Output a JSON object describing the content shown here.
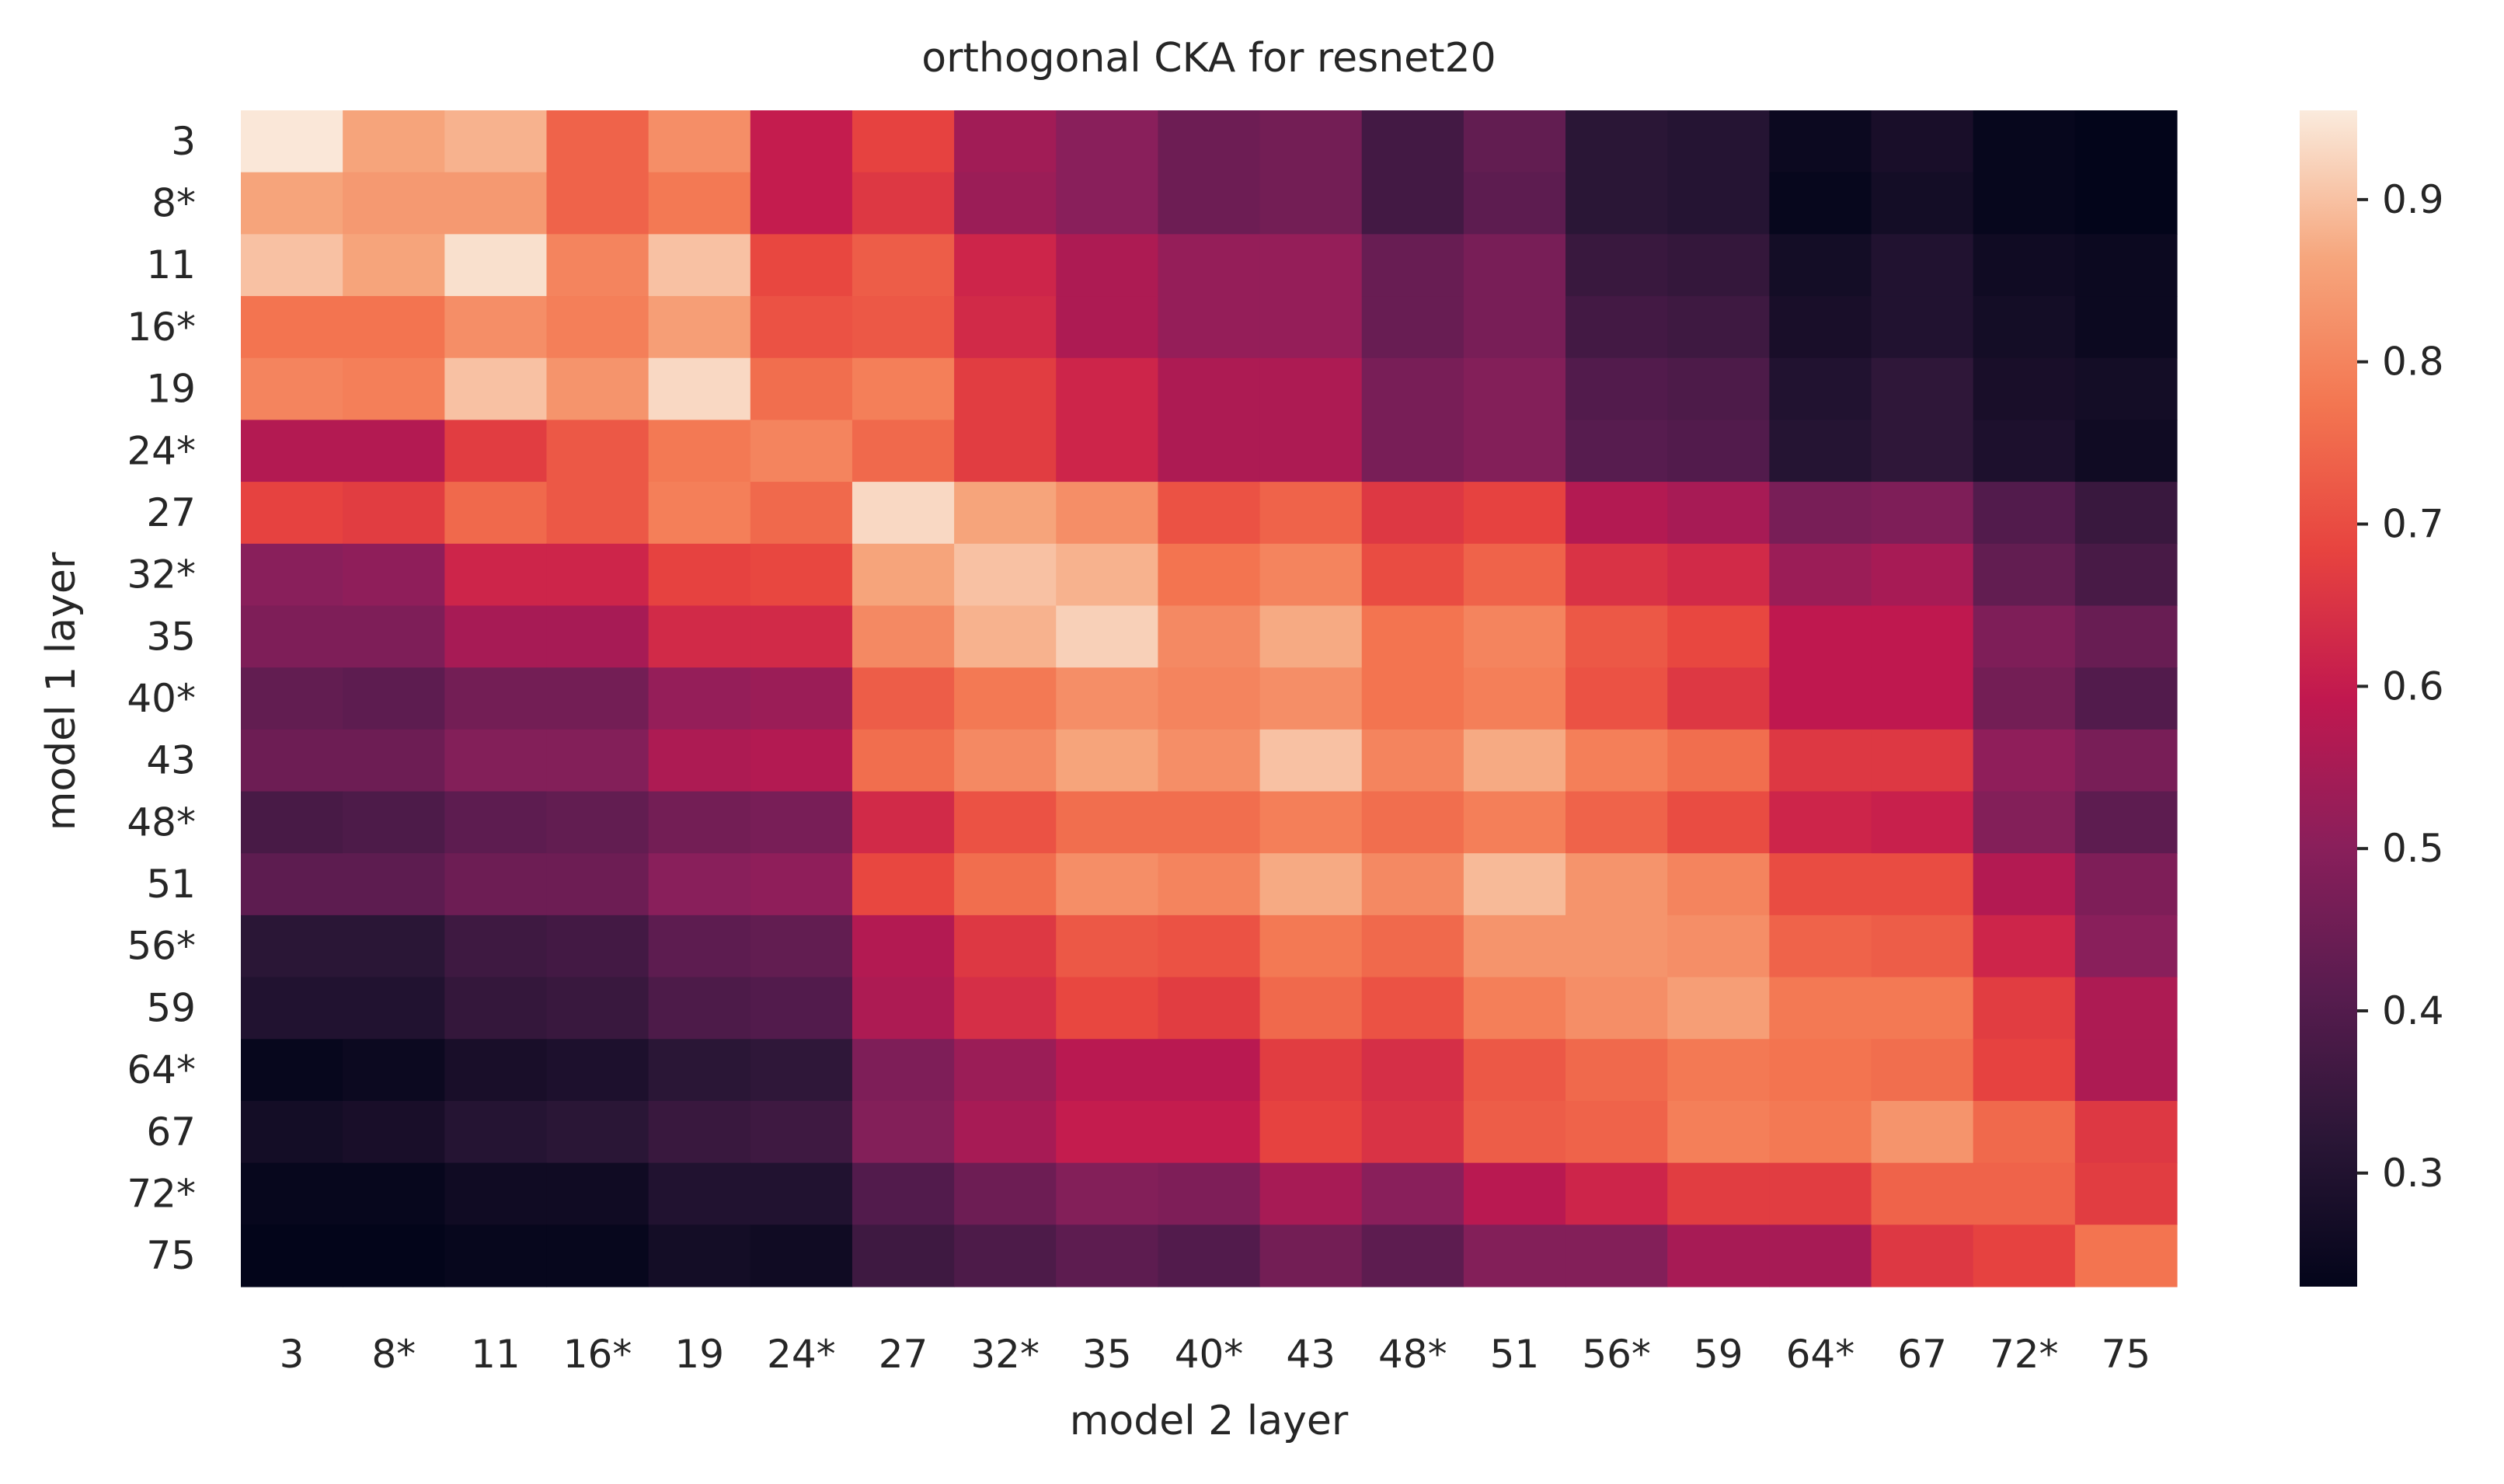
{
  "chart_data": {
    "type": "heatmap",
    "title": "orthogonal CKA for resnet20",
    "xlabel": "model 2 layer",
    "ylabel": "model 1 layer",
    "x_categories": [
      "3",
      "8*",
      "11",
      "16*",
      "19",
      "24*",
      "27",
      "32*",
      "35",
      "40*",
      "43",
      "48*",
      "51",
      "56*",
      "59",
      "64*",
      "67",
      "72*",
      "75"
    ],
    "y_categories": [
      "3",
      "8*",
      "11",
      "16*",
      "19",
      "24*",
      "27",
      "32*",
      "35",
      "40*",
      "43",
      "48*",
      "51",
      "56*",
      "59",
      "64*",
      "67",
      "72*",
      "75"
    ],
    "colorbar": {
      "min": 0.23,
      "max": 0.955,
      "ticks": [
        0.3,
        0.4,
        0.5,
        0.6,
        0.7,
        0.8,
        0.9
      ],
      "colormap": "rocket"
    },
    "values": [
      [
        0.95,
        0.86,
        0.88,
        0.74,
        0.82,
        0.6,
        0.68,
        0.54,
        0.5,
        0.45,
        0.46,
        0.37,
        0.43,
        0.32,
        0.31,
        0.25,
        0.28,
        0.24,
        0.23
      ],
      [
        0.86,
        0.84,
        0.84,
        0.74,
        0.78,
        0.6,
        0.66,
        0.53,
        0.5,
        0.45,
        0.46,
        0.37,
        0.42,
        0.32,
        0.31,
        0.24,
        0.27,
        0.24,
        0.23
      ],
      [
        0.9,
        0.86,
        0.94,
        0.8,
        0.9,
        0.69,
        0.73,
        0.62,
        0.56,
        0.52,
        0.52,
        0.44,
        0.47,
        0.35,
        0.34,
        0.27,
        0.3,
        0.26,
        0.25
      ],
      [
        0.77,
        0.77,
        0.82,
        0.79,
        0.85,
        0.71,
        0.72,
        0.63,
        0.56,
        0.52,
        0.52,
        0.44,
        0.47,
        0.37,
        0.36,
        0.28,
        0.3,
        0.27,
        0.25
      ],
      [
        0.8,
        0.79,
        0.9,
        0.83,
        0.93,
        0.76,
        0.79,
        0.67,
        0.62,
        0.56,
        0.56,
        0.47,
        0.49,
        0.4,
        0.39,
        0.3,
        0.33,
        0.28,
        0.27
      ],
      [
        0.57,
        0.57,
        0.67,
        0.72,
        0.78,
        0.8,
        0.75,
        0.67,
        0.62,
        0.56,
        0.56,
        0.47,
        0.49,
        0.41,
        0.4,
        0.31,
        0.33,
        0.29,
        0.26
      ],
      [
        0.68,
        0.67,
        0.75,
        0.72,
        0.79,
        0.75,
        0.93,
        0.86,
        0.82,
        0.71,
        0.74,
        0.66,
        0.68,
        0.57,
        0.55,
        0.47,
        0.48,
        0.4,
        0.35
      ],
      [
        0.5,
        0.51,
        0.62,
        0.62,
        0.68,
        0.69,
        0.86,
        0.9,
        0.88,
        0.77,
        0.8,
        0.7,
        0.74,
        0.65,
        0.63,
        0.53,
        0.55,
        0.43,
        0.38
      ],
      [
        0.48,
        0.48,
        0.55,
        0.55,
        0.63,
        0.63,
        0.81,
        0.88,
        0.92,
        0.81,
        0.87,
        0.77,
        0.8,
        0.72,
        0.69,
        0.59,
        0.59,
        0.48,
        0.44
      ],
      [
        0.43,
        0.42,
        0.46,
        0.46,
        0.52,
        0.53,
        0.73,
        0.78,
        0.82,
        0.8,
        0.82,
        0.77,
        0.79,
        0.71,
        0.66,
        0.59,
        0.59,
        0.46,
        0.4
      ],
      [
        0.45,
        0.45,
        0.49,
        0.49,
        0.56,
        0.57,
        0.76,
        0.81,
        0.86,
        0.82,
        0.9,
        0.8,
        0.87,
        0.79,
        0.76,
        0.66,
        0.66,
        0.51,
        0.47
      ],
      [
        0.38,
        0.39,
        0.42,
        0.43,
        0.46,
        0.47,
        0.63,
        0.71,
        0.76,
        0.76,
        0.79,
        0.76,
        0.79,
        0.74,
        0.7,
        0.62,
        0.61,
        0.49,
        0.42
      ],
      [
        0.42,
        0.42,
        0.45,
        0.45,
        0.5,
        0.51,
        0.69,
        0.76,
        0.82,
        0.8,
        0.87,
        0.81,
        0.89,
        0.83,
        0.8,
        0.7,
        0.7,
        0.57,
        0.48
      ],
      [
        0.32,
        0.32,
        0.36,
        0.37,
        0.42,
        0.43,
        0.57,
        0.66,
        0.72,
        0.71,
        0.78,
        0.75,
        0.83,
        0.83,
        0.82,
        0.74,
        0.73,
        0.62,
        0.5
      ],
      [
        0.3,
        0.3,
        0.34,
        0.35,
        0.39,
        0.4,
        0.56,
        0.64,
        0.69,
        0.67,
        0.75,
        0.71,
        0.79,
        0.82,
        0.85,
        0.78,
        0.78,
        0.67,
        0.56
      ],
      [
        0.24,
        0.25,
        0.28,
        0.29,
        0.32,
        0.33,
        0.48,
        0.53,
        0.58,
        0.58,
        0.67,
        0.64,
        0.72,
        0.75,
        0.78,
        0.77,
        0.76,
        0.68,
        0.56
      ],
      [
        0.27,
        0.28,
        0.31,
        0.32,
        0.35,
        0.36,
        0.49,
        0.55,
        0.6,
        0.6,
        0.68,
        0.65,
        0.73,
        0.74,
        0.79,
        0.78,
        0.83,
        0.75,
        0.66
      ],
      [
        0.24,
        0.24,
        0.26,
        0.26,
        0.3,
        0.3,
        0.4,
        0.45,
        0.49,
        0.48,
        0.55,
        0.5,
        0.58,
        0.62,
        0.67,
        0.67,
        0.74,
        0.74,
        0.67
      ],
      [
        0.23,
        0.23,
        0.24,
        0.24,
        0.27,
        0.26,
        0.36,
        0.39,
        0.42,
        0.4,
        0.46,
        0.42,
        0.49,
        0.49,
        0.55,
        0.55,
        0.66,
        0.68,
        0.77
      ]
    ]
  }
}
